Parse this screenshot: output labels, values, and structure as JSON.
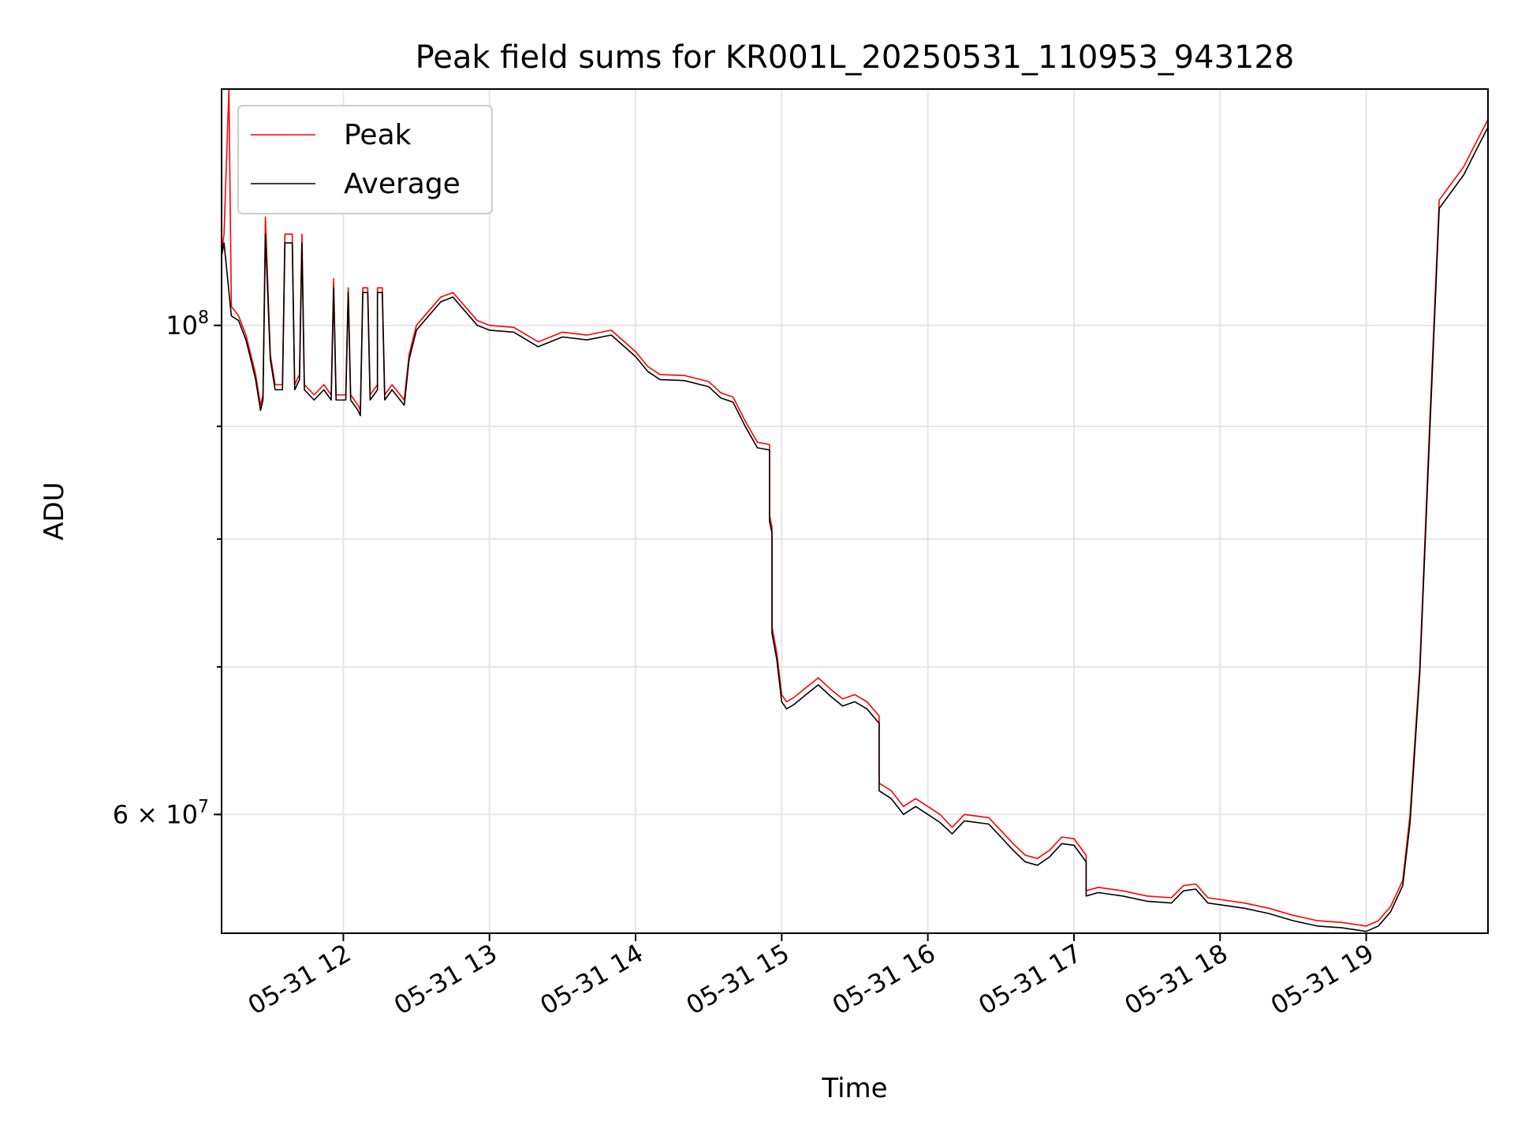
{
  "chart_data": {
    "type": "line",
    "title": "Peak field sums for KR001L_20250531_110953_943128",
    "xlabel": "Time",
    "ylabel": "ADU",
    "x_ticks": [
      "05-31 12",
      "05-31 13",
      "05-31 14",
      "05-31 15",
      "05-31 16",
      "05-31 17",
      "05-31 18",
      "05-31 19"
    ],
    "y_ticks": [
      "10",
      "6 × 10"
    ],
    "y_tick_superscripts": [
      "8",
      "7"
    ],
    "y_scale": "log",
    "xlim": [
      "2025-05-31 11:10",
      "2025-05-31 19:50"
    ],
    "ylim": [
      53000000,
      128000000
    ],
    "grid": true,
    "legend_position": "top-left",
    "series": [
      {
        "name": "Peak",
        "color": "#ff0000",
        "points": [
          [
            "2025-05-31 11:10",
            108000000
          ],
          [
            "2025-05-31 11:11",
            110000000
          ],
          [
            "2025-05-31 11:13",
            128000000
          ],
          [
            "2025-05-31 11:14",
            102000000
          ],
          [
            "2025-05-31 11:17",
            101000000
          ],
          [
            "2025-05-31 11:20",
            99000000
          ],
          [
            "2025-05-31 11:22",
            97000000
          ],
          [
            "2025-05-31 11:24",
            95000000
          ],
          [
            "2025-05-31 11:26",
            92000000
          ],
          [
            "2025-05-31 11:27",
            93000000
          ],
          [
            "2025-05-31 11:28",
            112000000
          ],
          [
            "2025-05-31 11:30",
            97000000
          ],
          [
            "2025-05-31 11:32",
            94000000
          ],
          [
            "2025-05-31 11:35",
            94000000
          ],
          [
            "2025-05-31 11:36",
            110000000
          ],
          [
            "2025-05-31 11:39",
            110000000
          ],
          [
            "2025-05-31 11:40",
            94000000
          ],
          [
            "2025-05-31 11:42",
            95000000
          ],
          [
            "2025-05-31 11:43",
            110000000
          ],
          [
            "2025-05-31 11:44",
            94000000
          ],
          [
            "2025-05-31 11:48",
            93000000
          ],
          [
            "2025-05-31 11:52",
            94000000
          ],
          [
            "2025-05-31 11:55",
            93000000
          ],
          [
            "2025-05-31 11:56",
            105000000
          ],
          [
            "2025-05-31 11:57",
            93000000
          ],
          [
            "2025-05-31 12:01",
            93000000
          ],
          [
            "2025-05-31 12:02",
            104000000
          ],
          [
            "2025-05-31 12:03",
            93000000
          ],
          [
            "2025-05-31 12:06",
            92000000
          ],
          [
            "2025-05-31 12:07",
            91500000
          ],
          [
            "2025-05-31 12:08",
            104000000
          ],
          [
            "2025-05-31 12:10",
            104000000
          ],
          [
            "2025-05-31 12:11",
            93000000
          ],
          [
            "2025-05-31 12:14",
            94000000
          ],
          [
            "2025-05-31 12:14",
            104000000
          ],
          [
            "2025-05-31 12:16",
            104000000
          ],
          [
            "2025-05-31 12:17",
            93000000
          ],
          [
            "2025-05-31 12:20",
            94000000
          ],
          [
            "2025-05-31 12:25",
            92500000
          ],
          [
            "2025-05-31 12:27",
            97000000
          ],
          [
            "2025-05-31 12:30",
            100000000
          ],
          [
            "2025-05-31 12:35",
            101500000
          ],
          [
            "2025-05-31 12:40",
            103000000
          ],
          [
            "2025-05-31 12:45",
            103500000
          ],
          [
            "2025-05-31 12:50",
            102000000
          ],
          [
            "2025-05-31 12:55",
            100500000
          ],
          [
            "2025-05-31 13:00",
            100000000
          ],
          [
            "2025-05-31 13:10",
            99800000
          ],
          [
            "2025-05-31 13:20",
            98300000
          ],
          [
            "2025-05-31 13:30",
            99300000
          ],
          [
            "2025-05-31 13:40",
            99000000
          ],
          [
            "2025-05-31 13:50",
            99500000
          ],
          [
            "2025-05-31 14:00",
            97300000
          ],
          [
            "2025-05-31 14:05",
            95800000
          ],
          [
            "2025-05-31 14:10",
            95000000
          ],
          [
            "2025-05-31 14:20",
            94900000
          ],
          [
            "2025-05-31 14:30",
            94300000
          ],
          [
            "2025-05-31 14:35",
            93200000
          ],
          [
            "2025-05-31 14:40",
            92800000
          ],
          [
            "2025-05-31 14:45",
            90500000
          ],
          [
            "2025-05-31 14:50",
            88500000
          ],
          [
            "2025-05-31 14:55",
            88300000
          ],
          [
            "2025-05-31 14:55",
            82000000
          ],
          [
            "2025-05-31 14:56",
            81000000
          ],
          [
            "2025-05-31 14:56",
            73000000
          ],
          [
            "2025-05-31 14:58",
            71000000
          ],
          [
            "2025-05-31 15:00",
            68000000
          ],
          [
            "2025-05-31 15:02",
            67500000
          ],
          [
            "2025-05-31 15:05",
            67800000
          ],
          [
            "2025-05-31 15:10",
            68500000
          ],
          [
            "2025-05-31 15:15",
            69200000
          ],
          [
            "2025-05-31 15:20",
            68400000
          ],
          [
            "2025-05-31 15:25",
            67700000
          ],
          [
            "2025-05-31 15:30",
            68000000
          ],
          [
            "2025-05-31 15:35",
            67500000
          ],
          [
            "2025-05-31 15:40",
            66500000
          ],
          [
            "2025-05-31 15:40",
            62000000
          ],
          [
            "2025-05-31 15:45",
            61500000
          ],
          [
            "2025-05-31 15:50",
            60500000
          ],
          [
            "2025-05-31 15:55",
            61000000
          ],
          [
            "2025-05-31 16:00",
            60500000
          ],
          [
            "2025-05-31 16:05",
            60000000
          ],
          [
            "2025-05-31 16:10",
            59200000
          ],
          [
            "2025-05-31 16:15",
            60000000
          ],
          [
            "2025-05-31 16:25",
            59800000
          ],
          [
            "2025-05-31 16:30",
            59000000
          ],
          [
            "2025-05-31 16:35",
            58200000
          ],
          [
            "2025-05-31 16:40",
            57500000
          ],
          [
            "2025-05-31 16:45",
            57300000
          ],
          [
            "2025-05-31 16:50",
            57800000
          ],
          [
            "2025-05-31 16:55",
            58600000
          ],
          [
            "2025-05-31 17:00",
            58500000
          ],
          [
            "2025-05-31 17:05",
            57500000
          ],
          [
            "2025-05-31 17:05",
            55400000
          ],
          [
            "2025-05-31 17:10",
            55600000
          ],
          [
            "2025-05-31 17:20",
            55400000
          ],
          [
            "2025-05-31 17:30",
            55100000
          ],
          [
            "2025-05-31 17:40",
            55000000
          ],
          [
            "2025-05-31 17:45",
            55700000
          ],
          [
            "2025-05-31 17:50",
            55800000
          ],
          [
            "2025-05-31 17:55",
            55000000
          ],
          [
            "2025-05-31 18:10",
            54700000
          ],
          [
            "2025-05-31 18:20",
            54400000
          ],
          [
            "2025-05-31 18:30",
            54000000
          ],
          [
            "2025-05-31 18:40",
            53700000
          ],
          [
            "2025-05-31 18:50",
            53600000
          ],
          [
            "2025-05-31 19:00",
            53400000
          ],
          [
            "2025-05-31 19:05",
            53700000
          ],
          [
            "2025-05-31 19:10",
            54500000
          ],
          [
            "2025-05-31 19:15",
            56000000
          ],
          [
            "2025-05-31 19:18",
            60000000
          ],
          [
            "2025-05-31 19:22",
            70000000
          ],
          [
            "2025-05-31 19:26",
            90000000
          ],
          [
            "2025-05-31 19:30",
            114000000
          ],
          [
            "2025-05-31 19:35",
            116000000
          ],
          [
            "2025-05-31 19:40",
            118000000
          ],
          [
            "2025-05-31 19:45",
            121000000
          ],
          [
            "2025-05-31 19:50",
            124000000
          ]
        ]
      },
      {
        "name": "Average",
        "color": "#000000",
        "points": [
          [
            "2025-05-31 11:10",
            107500000
          ],
          [
            "2025-05-31 11:11",
            109000000
          ],
          [
            "2025-05-31 11:14",
            101000000
          ],
          [
            "2025-05-31 11:17",
            100500000
          ],
          [
            "2025-05-31 11:20",
            98500000
          ],
          [
            "2025-05-31 11:22",
            96500000
          ],
          [
            "2025-05-31 11:24",
            94500000
          ],
          [
            "2025-05-31 11:26",
            91500000
          ],
          [
            "2025-05-31 11:27",
            92500000
          ],
          [
            "2025-05-31 11:28",
            110000000
          ],
          [
            "2025-05-31 11:30",
            96500000
          ],
          [
            "2025-05-31 11:32",
            93500000
          ],
          [
            "2025-05-31 11:35",
            93500000
          ],
          [
            "2025-05-31 11:36",
            109000000
          ],
          [
            "2025-05-31 11:39",
            109000000
          ],
          [
            "2025-05-31 11:40",
            93500000
          ],
          [
            "2025-05-31 11:42",
            94500000
          ],
          [
            "2025-05-31 11:43",
            109000000
          ],
          [
            "2025-05-31 11:44",
            93500000
          ],
          [
            "2025-05-31 11:48",
            92500000
          ],
          [
            "2025-05-31 11:52",
            93500000
          ],
          [
            "2025-05-31 11:55",
            92500000
          ],
          [
            "2025-05-31 11:56",
            104000000
          ],
          [
            "2025-05-31 11:57",
            92500000
          ],
          [
            "2025-05-31 12:01",
            92500000
          ],
          [
            "2025-05-31 12:02",
            103500000
          ],
          [
            "2025-05-31 12:03",
            92500000
          ],
          [
            "2025-05-31 12:06",
            91500000
          ],
          [
            "2025-05-31 12:07",
            91000000
          ],
          [
            "2025-05-31 12:08",
            103500000
          ],
          [
            "2025-05-31 12:10",
            103500000
          ],
          [
            "2025-05-31 12:11",
            92500000
          ],
          [
            "2025-05-31 12:14",
            93500000
          ],
          [
            "2025-05-31 12:14",
            103500000
          ],
          [
            "2025-05-31 12:16",
            103500000
          ],
          [
            "2025-05-31 12:17",
            92500000
          ],
          [
            "2025-05-31 12:20",
            93500000
          ],
          [
            "2025-05-31 12:25",
            92000000
          ],
          [
            "2025-05-31 12:27",
            96500000
          ],
          [
            "2025-05-31 12:30",
            99500000
          ],
          [
            "2025-05-31 12:35",
            101000000
          ],
          [
            "2025-05-31 12:40",
            102500000
          ],
          [
            "2025-05-31 12:45",
            103000000
          ],
          [
            "2025-05-31 12:50",
            101500000
          ],
          [
            "2025-05-31 12:55",
            100000000
          ],
          [
            "2025-05-31 13:00",
            99500000
          ],
          [
            "2025-05-31 13:10",
            99300000
          ],
          [
            "2025-05-31 13:20",
            97800000
          ],
          [
            "2025-05-31 13:30",
            98800000
          ],
          [
            "2025-05-31 13:40",
            98500000
          ],
          [
            "2025-05-31 13:50",
            99000000
          ],
          [
            "2025-05-31 14:00",
            96800000
          ],
          [
            "2025-05-31 14:05",
            95300000
          ],
          [
            "2025-05-31 14:10",
            94500000
          ],
          [
            "2025-05-31 14:20",
            94400000
          ],
          [
            "2025-05-31 14:30",
            93800000
          ],
          [
            "2025-05-31 14:35",
            92700000
          ],
          [
            "2025-05-31 14:40",
            92300000
          ],
          [
            "2025-05-31 14:45",
            90000000
          ],
          [
            "2025-05-31 14:50",
            88000000
          ],
          [
            "2025-05-31 14:55",
            87800000
          ],
          [
            "2025-05-31 14:55",
            81500000
          ],
          [
            "2025-05-31 14:56",
            80500000
          ],
          [
            "2025-05-31 14:56",
            72500000
          ],
          [
            "2025-05-31 14:58",
            70500000
          ],
          [
            "2025-05-31 15:00",
            67500000
          ],
          [
            "2025-05-31 15:02",
            67000000
          ],
          [
            "2025-05-31 15:05",
            67300000
          ],
          [
            "2025-05-31 15:10",
            68000000
          ],
          [
            "2025-05-31 15:15",
            68700000
          ],
          [
            "2025-05-31 15:20",
            67900000
          ],
          [
            "2025-05-31 15:25",
            67200000
          ],
          [
            "2025-05-31 15:30",
            67500000
          ],
          [
            "2025-05-31 15:35",
            67000000
          ],
          [
            "2025-05-31 15:40",
            66000000
          ],
          [
            "2025-05-31 15:40",
            61500000
          ],
          [
            "2025-05-31 15:45",
            61000000
          ],
          [
            "2025-05-31 15:50",
            60000000
          ],
          [
            "2025-05-31 15:55",
            60500000
          ],
          [
            "2025-05-31 16:00",
            60000000
          ],
          [
            "2025-05-31 16:05",
            59500000
          ],
          [
            "2025-05-31 16:10",
            58800000
          ],
          [
            "2025-05-31 16:15",
            59600000
          ],
          [
            "2025-05-31 16:25",
            59400000
          ],
          [
            "2025-05-31 16:30",
            58600000
          ],
          [
            "2025-05-31 16:35",
            57800000
          ],
          [
            "2025-05-31 16:40",
            57100000
          ],
          [
            "2025-05-31 16:45",
            56900000
          ],
          [
            "2025-05-31 16:50",
            57400000
          ],
          [
            "2025-05-31 16:55",
            58200000
          ],
          [
            "2025-05-31 17:00",
            58100000
          ],
          [
            "2025-05-31 17:05",
            57100000
          ],
          [
            "2025-05-31 17:05",
            55100000
          ],
          [
            "2025-05-31 17:10",
            55300000
          ],
          [
            "2025-05-31 17:20",
            55100000
          ],
          [
            "2025-05-31 17:30",
            54800000
          ],
          [
            "2025-05-31 17:40",
            54700000
          ],
          [
            "2025-05-31 17:45",
            55400000
          ],
          [
            "2025-05-31 17:50",
            55500000
          ],
          [
            "2025-05-31 17:55",
            54700000
          ],
          [
            "2025-05-31 18:10",
            54400000
          ],
          [
            "2025-05-31 18:20",
            54100000
          ],
          [
            "2025-05-31 18:30",
            53700000
          ],
          [
            "2025-05-31 18:40",
            53400000
          ],
          [
            "2025-05-31 18:50",
            53300000
          ],
          [
            "2025-05-31 19:00",
            53100000
          ],
          [
            "2025-05-31 19:05",
            53400000
          ],
          [
            "2025-05-31 19:10",
            54200000
          ],
          [
            "2025-05-31 19:15",
            55700000
          ],
          [
            "2025-05-31 19:18",
            59500000
          ],
          [
            "2025-05-31 19:22",
            69500000
          ],
          [
            "2025-05-31 19:26",
            89000000
          ],
          [
            "2025-05-31 19:30",
            113000000
          ],
          [
            "2025-05-31 19:35",
            115000000
          ],
          [
            "2025-05-31 19:40",
            117000000
          ],
          [
            "2025-05-31 19:45",
            120000000
          ],
          [
            "2025-05-31 19:50",
            123000000
          ]
        ]
      }
    ]
  }
}
